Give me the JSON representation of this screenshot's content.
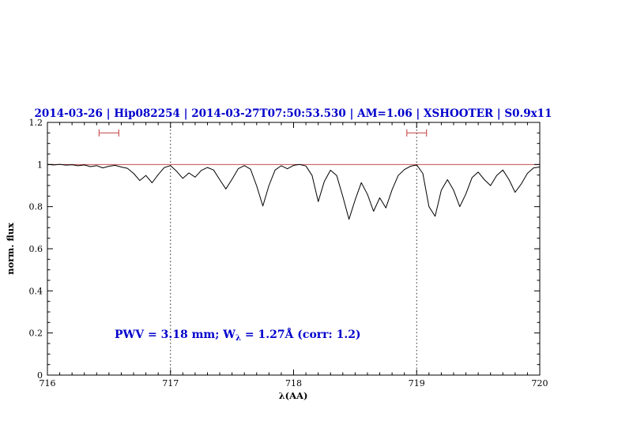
{
  "title": "2014-03-26 | Hip082254 | 2014-03-27T07:50:53.530 | AM=1.06 | XSHOOTER | S0.9x11",
  "annotation": {
    "full": "PWV = 3.18 mm; W_λ = 1.27Å (corr: 1.2)",
    "prefix": "PWV = 3.18 mm; W",
    "sub": "λ",
    "suffix": " = 1.27Å (corr: 1.2)"
  },
  "colors": {
    "title_blue": "#0000cc",
    "annotation_blue": "#0000cc",
    "continuum_red": "#bb3333",
    "marker_red": "#cc5555",
    "spectrum_black": "#000000",
    "dotted_line": "#222222"
  },
  "chart_data": {
    "type": "line",
    "title": "2014-03-26 | Hip082254 | 2014-03-27T07:50:53.530 | AM=1.06 | XSHOOTER | S0.9x11",
    "xlabel": "λ(AA)",
    "ylabel": "norm. flux",
    "xlim": [
      716,
      720
    ],
    "ylim": [
      0,
      1.2
    ],
    "grid": false,
    "legend": "none",
    "x_ticks": [
      716,
      717,
      718,
      719,
      720
    ],
    "x_tick_labels": [
      "716",
      "717",
      "718",
      "719",
      "720"
    ],
    "y_ticks": [
      0,
      0.2,
      0.4,
      0.6,
      0.8,
      1,
      1.2
    ],
    "y_tick_labels": [
      "0",
      "0.2",
      "0.4",
      "0.6",
      "0.8",
      "1",
      "1.2"
    ],
    "x_minor_step": 0.1,
    "y_minor_step": 0.05,
    "dotted_lines_x": [
      717,
      719
    ],
    "continuum_y": 1.0,
    "range_markers": [
      {
        "x1": 716.42,
        "x2": 716.58,
        "y": 1.15
      },
      {
        "x1": 718.92,
        "x2": 719.08,
        "y": 1.15
      }
    ],
    "series": [
      {
        "name": "telluric-spectrum",
        "points": [
          [
            716.0,
            1.0
          ],
          [
            716.05,
            0.998
          ],
          [
            716.1,
            1.001
          ],
          [
            716.15,
            0.997
          ],
          [
            716.2,
            0.999
          ],
          [
            716.25,
            0.994
          ],
          [
            716.3,
            0.998
          ],
          [
            716.35,
            0.99
          ],
          [
            716.4,
            0.995
          ],
          [
            716.45,
            0.984
          ],
          [
            716.5,
            0.992
          ],
          [
            716.55,
            0.996
          ],
          [
            716.6,
            0.988
          ],
          [
            716.65,
            0.982
          ],
          [
            716.7,
            0.958
          ],
          [
            716.75,
            0.924
          ],
          [
            716.8,
            0.948
          ],
          [
            716.85,
            0.913
          ],
          [
            716.9,
            0.952
          ],
          [
            716.95,
            0.986
          ],
          [
            717.0,
            0.995
          ],
          [
            717.05,
            0.968
          ],
          [
            717.1,
            0.934
          ],
          [
            717.15,
            0.96
          ],
          [
            717.2,
            0.94
          ],
          [
            717.25,
            0.972
          ],
          [
            717.3,
            0.986
          ],
          [
            717.35,
            0.974
          ],
          [
            717.4,
            0.928
          ],
          [
            717.45,
            0.884
          ],
          [
            717.5,
            0.93
          ],
          [
            717.55,
            0.98
          ],
          [
            717.6,
            0.995
          ],
          [
            717.65,
            0.978
          ],
          [
            717.7,
            0.898
          ],
          [
            717.75,
            0.803
          ],
          [
            717.8,
            0.9
          ],
          [
            717.85,
            0.974
          ],
          [
            717.9,
            0.994
          ],
          [
            717.95,
            0.98
          ],
          [
            718.0,
            0.996
          ],
          [
            718.05,
            1.0
          ],
          [
            718.1,
            0.993
          ],
          [
            718.15,
            0.948
          ],
          [
            718.2,
            0.824
          ],
          [
            718.25,
            0.92
          ],
          [
            718.3,
            0.973
          ],
          [
            718.35,
            0.948
          ],
          [
            718.4,
            0.848
          ],
          [
            718.45,
            0.74
          ],
          [
            718.5,
            0.832
          ],
          [
            718.55,
            0.914
          ],
          [
            718.6,
            0.858
          ],
          [
            718.65,
            0.778
          ],
          [
            718.7,
            0.842
          ],
          [
            718.75,
            0.794
          ],
          [
            718.8,
            0.88
          ],
          [
            718.85,
            0.948
          ],
          [
            718.9,
            0.976
          ],
          [
            718.95,
            0.992
          ],
          [
            719.0,
            0.998
          ],
          [
            719.05,
            0.958
          ],
          [
            719.1,
            0.8
          ],
          [
            719.15,
            0.754
          ],
          [
            719.2,
            0.878
          ],
          [
            719.25,
            0.928
          ],
          [
            719.3,
            0.878
          ],
          [
            719.35,
            0.8
          ],
          [
            719.4,
            0.86
          ],
          [
            719.45,
            0.938
          ],
          [
            719.5,
            0.964
          ],
          [
            719.55,
            0.928
          ],
          [
            719.6,
            0.9
          ],
          [
            719.65,
            0.948
          ],
          [
            719.7,
            0.974
          ],
          [
            719.75,
            0.928
          ],
          [
            719.8,
            0.868
          ],
          [
            719.85,
            0.908
          ],
          [
            719.9,
            0.958
          ],
          [
            719.95,
            0.984
          ],
          [
            720.0,
            0.988
          ]
        ]
      }
    ]
  }
}
